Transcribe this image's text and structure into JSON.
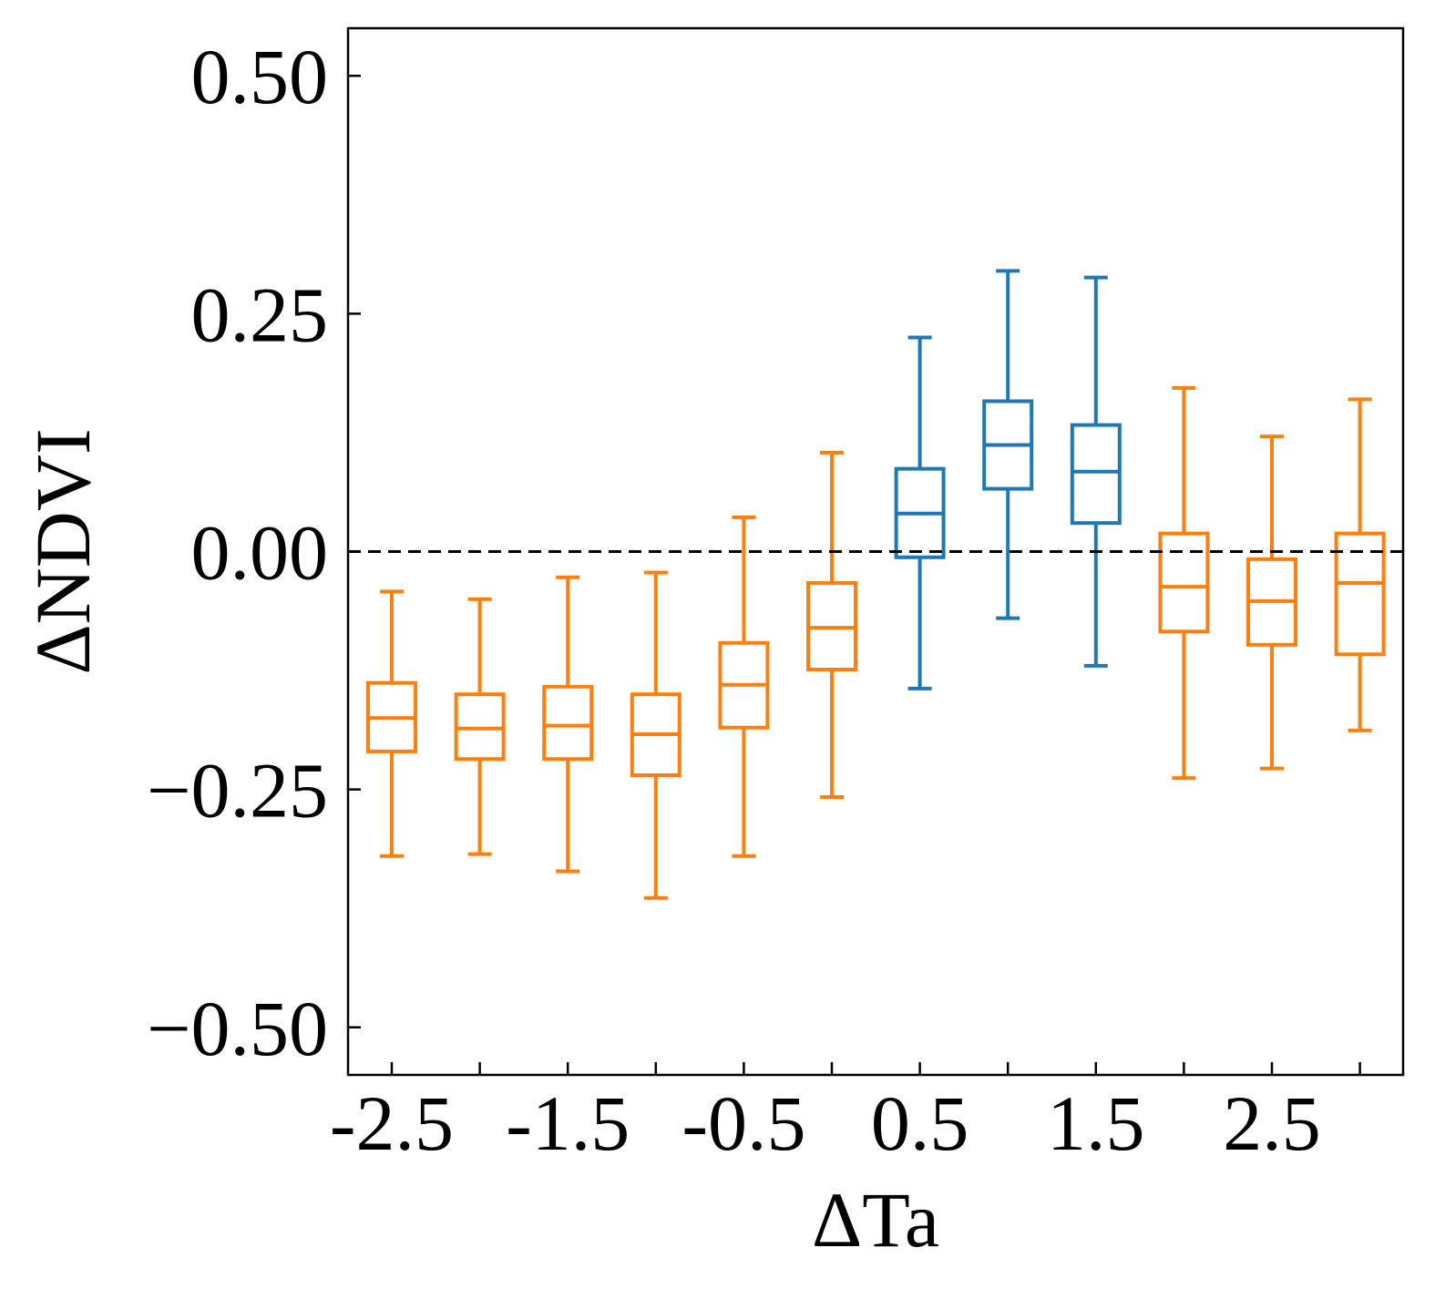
{
  "chart_data": {
    "type": "box",
    "xlabel": "ΔTa",
    "ylabel": "ΔNDVI",
    "ylim": [
      -0.55,
      0.55
    ],
    "yticks": [
      {
        "value": 0.5,
        "label": "0.50"
      },
      {
        "value": 0.25,
        "label": "0.25"
      },
      {
        "value": 0.0,
        "label": "0.00"
      },
      {
        "value": -0.25,
        "label": "−0.25"
      },
      {
        "value": -0.5,
        "label": "−0.50"
      }
    ],
    "xticks_labeled": [
      "-2.5",
      "-1.5",
      "-0.5",
      "0.5",
      "1.5",
      "2.5"
    ],
    "reference_line": {
      "y": 0.0,
      "style": "dashed",
      "color": "#000000"
    },
    "grid": false,
    "colors": {
      "negative_effect": "#ff7f0e",
      "positive_effect": "#1f77b4"
    },
    "boxes": [
      {
        "x": -2.5,
        "whisker_low": -0.32,
        "q1": -0.21,
        "median": -0.175,
        "q3": -0.138,
        "whisker_high": -0.042,
        "color": "#ff7f0e"
      },
      {
        "x": -2.0,
        "whisker_low": -0.318,
        "q1": -0.218,
        "median": -0.186,
        "q3": -0.15,
        "whisker_high": -0.05,
        "color": "#ff7f0e"
      },
      {
        "x": -1.5,
        "whisker_low": -0.336,
        "q1": -0.218,
        "median": -0.183,
        "q3": -0.142,
        "whisker_high": -0.027,
        "color": "#ff7f0e"
      },
      {
        "x": -1.0,
        "whisker_low": -0.364,
        "q1": -0.235,
        "median": -0.192,
        "q3": -0.15,
        "whisker_high": -0.022,
        "color": "#ff7f0e"
      },
      {
        "x": -0.5,
        "whisker_low": -0.32,
        "q1": -0.185,
        "median": -0.14,
        "q3": -0.096,
        "whisker_high": 0.036,
        "color": "#ff7f0e"
      },
      {
        "x": 0.0,
        "whisker_low": -0.258,
        "q1": -0.124,
        "median": -0.08,
        "q3": -0.033,
        "whisker_high": 0.104,
        "color": "#ff7f0e"
      },
      {
        "x": 0.5,
        "whisker_low": -0.144,
        "q1": -0.006,
        "median": 0.04,
        "q3": 0.087,
        "whisker_high": 0.225,
        "color": "#1f77b4"
      },
      {
        "x": 1.0,
        "whisker_low": -0.07,
        "q1": 0.066,
        "median": 0.112,
        "q3": 0.158,
        "whisker_high": 0.295,
        "color": "#1f77b4"
      },
      {
        "x": 1.5,
        "whisker_low": -0.12,
        "q1": 0.03,
        "median": 0.084,
        "q3": 0.133,
        "whisker_high": 0.288,
        "color": "#1f77b4"
      },
      {
        "x": 2.0,
        "whisker_low": -0.238,
        "q1": -0.084,
        "median": -0.037,
        "q3": 0.019,
        "whisker_high": 0.172,
        "color": "#ff7f0e"
      },
      {
        "x": 2.5,
        "whisker_low": -0.228,
        "q1": -0.098,
        "median": -0.052,
        "q3": -0.008,
        "whisker_high": 0.121,
        "color": "#ff7f0e"
      },
      {
        "x": 3.0,
        "whisker_low": -0.188,
        "q1": -0.108,
        "median": -0.033,
        "q3": 0.019,
        "whisker_high": 0.16,
        "color": "#ff7f0e"
      }
    ]
  }
}
